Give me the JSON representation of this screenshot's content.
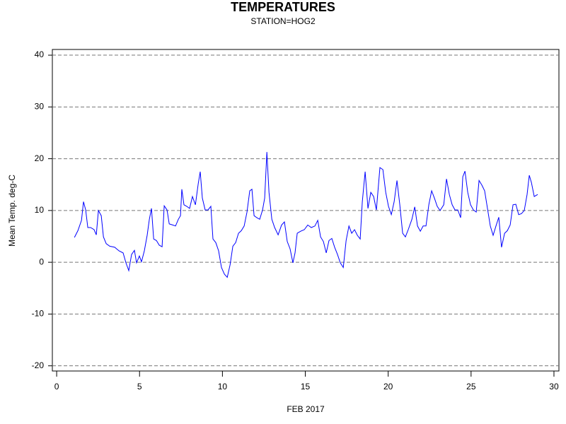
{
  "chart_data": {
    "type": "line",
    "title": "TEMPERATURES",
    "subtitle": "STATION=HOG2",
    "x_label": "FEB 2017",
    "y_label": "Mean Temp. deg-C",
    "xlim": [
      -0.26,
      30.3
    ],
    "xticks": [
      0,
      5,
      10,
      15,
      20,
      25,
      30
    ],
    "ylim": [
      -21,
      41.1
    ],
    "yticks": [
      -20,
      -10,
      0,
      10,
      20,
      30,
      40
    ],
    "grid": true,
    "x": [
      1.07,
      1.28,
      1.5,
      1.62,
      1.75,
      1.88,
      2.05,
      2.26,
      2.39,
      2.52,
      2.69,
      2.82,
      2.99,
      3.2,
      3.5,
      3.76,
      4.01,
      4.18,
      4.35,
      4.52,
      4.69,
      4.82,
      4.99,
      5.12,
      5.29,
      5.46,
      5.59,
      5.72,
      5.85,
      6.02,
      6.19,
      6.36,
      6.49,
      6.66,
      6.79,
      7.0,
      7.17,
      7.34,
      7.47,
      7.55,
      7.68,
      7.85,
      8.02,
      8.19,
      8.37,
      8.54,
      8.66,
      8.79,
      8.96,
      9.13,
      9.3,
      9.43,
      9.6,
      9.77,
      9.94,
      10.12,
      10.29,
      10.46,
      10.63,
      10.8,
      10.97,
      11.14,
      11.31,
      11.48,
      11.65,
      11.78,
      11.91,
      12.08,
      12.25,
      12.42,
      12.55,
      12.68,
      12.81,
      12.98,
      13.15,
      13.36,
      13.57,
      13.74,
      13.91,
      14.08,
      14.25,
      14.38,
      14.51,
      14.72,
      14.94,
      15.15,
      15.36,
      15.58,
      15.75,
      15.92,
      16.09,
      16.26,
      16.43,
      16.6,
      16.77,
      16.94,
      17.11,
      17.29,
      17.46,
      17.63,
      17.8,
      17.97,
      18.14,
      18.31,
      18.44,
      18.61,
      18.78,
      18.95,
      19.12,
      19.29,
      19.5,
      19.68,
      19.85,
      20.02,
      20.19,
      20.36,
      20.53,
      20.7,
      20.87,
      21.04,
      21.21,
      21.43,
      21.6,
      21.77,
      21.94,
      22.11,
      22.28,
      22.45,
      22.62,
      22.79,
      22.96,
      23.13,
      23.35,
      23.52,
      23.69,
      23.86,
      24.03,
      24.2,
      24.37,
      24.5,
      24.63,
      24.8,
      24.97,
      25.14,
      25.31,
      25.48,
      25.65,
      25.82,
      25.99,
      26.16,
      26.33,
      26.5,
      26.67,
      26.84,
      27.02,
      27.19,
      27.36,
      27.53,
      27.7,
      27.87,
      28.04,
      28.21,
      28.38,
      28.51,
      28.64,
      28.81,
      29.02
    ],
    "series": [
      {
        "name": "Mean Temp",
        "color": "#0000ff",
        "values": [
          4.8,
          6.1,
          8.1,
          11.7,
          10.1,
          6.7,
          6.7,
          6.3,
          5.3,
          10.0,
          9.0,
          4.9,
          3.6,
          3.1,
          2.9,
          2.2,
          1.8,
          -0.1,
          -1.6,
          1.5,
          2.3,
          -0.1,
          1.2,
          0.1,
          2.2,
          5.2,
          8.3,
          10.4,
          4.5,
          4.2,
          3.3,
          3.0,
          10.9,
          10.1,
          7.4,
          7.2,
          7.0,
          8.3,
          9.0,
          14.1,
          11.1,
          10.8,
          10.4,
          12.7,
          11.1,
          15.2,
          17.5,
          12.4,
          10.1,
          10.1,
          10.8,
          4.5,
          3.8,
          2.2,
          -1.0,
          -2.3,
          -2.9,
          -0.5,
          3.1,
          3.8,
          5.6,
          6.1,
          7.0,
          9.7,
          13.8,
          14.1,
          9.0,
          8.6,
          8.3,
          10.1,
          12.4,
          21.3,
          13.5,
          8.3,
          6.7,
          5.3,
          7.2,
          7.8,
          4.0,
          2.6,
          -0.1,
          1.8,
          5.6,
          6.0,
          6.3,
          7.2,
          6.7,
          7.0,
          8.1,
          4.9,
          4.0,
          1.8,
          4.2,
          4.6,
          2.9,
          1.5,
          -0.1,
          -1.0,
          4.2,
          7.0,
          5.6,
          6.3,
          5.2,
          4.5,
          11.7,
          17.5,
          10.4,
          13.5,
          12.7,
          10.1,
          18.3,
          17.9,
          13.5,
          10.8,
          9.2,
          11.7,
          15.8,
          11.1,
          5.6,
          4.9,
          6.3,
          8.3,
          10.7,
          7.0,
          6.0,
          7.0,
          7.0,
          11.1,
          13.8,
          12.4,
          10.8,
          10.0,
          11.1,
          16.1,
          13.1,
          11.1,
          10.1,
          10.1,
          8.6,
          16.5,
          17.6,
          13.5,
          11.1,
          10.1,
          9.7,
          15.8,
          14.9,
          13.8,
          10.4,
          7.0,
          5.2,
          7.0,
          8.7,
          2.9,
          5.6,
          6.1,
          7.2,
          11.1,
          11.2,
          9.2,
          9.4,
          10.0,
          13.1,
          16.8,
          15.4,
          12.7,
          13.1
        ]
      }
    ]
  }
}
